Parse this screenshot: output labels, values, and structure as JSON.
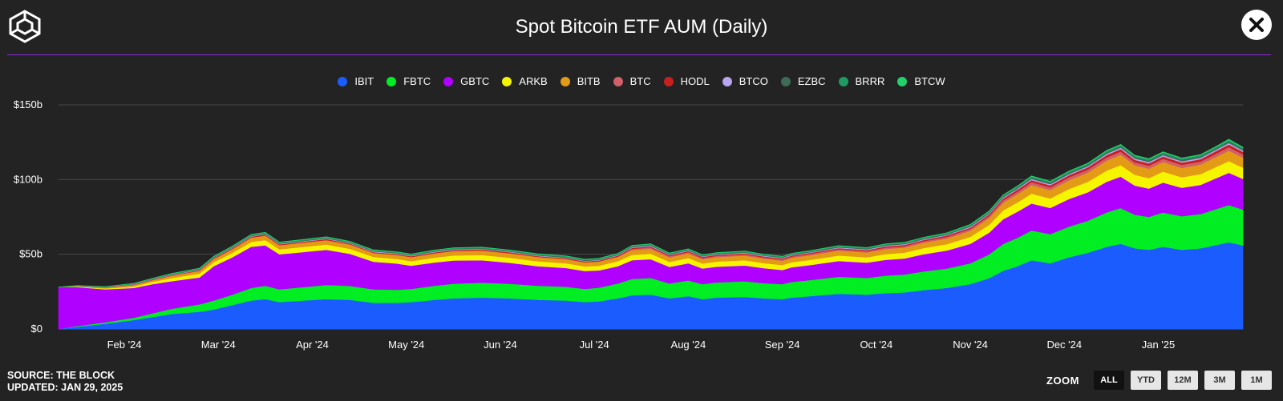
{
  "header": {
    "title": "Spot Bitcoin ETF AUM (Daily)"
  },
  "footer": {
    "source": "SOURCE: THE BLOCK",
    "updated": "UPDATED: JAN 29, 2025"
  },
  "zoom": {
    "label": "ZOOM",
    "options": [
      "ALL",
      "YTD",
      "12M",
      "3M",
      "1M"
    ],
    "selected": "ALL"
  },
  "chart_data": {
    "type": "area",
    "stacked": true,
    "title": "Spot Bitcoin ETF AUM (Daily)",
    "xlabel": "",
    "ylabel": "",
    "x_unit": "months since Jan 11, 2024",
    "x_range": [
      0,
      12.6
    ],
    "ylim": [
      0,
      150
    ],
    "y_ticks": [
      0,
      50,
      100,
      150
    ],
    "y_tick_labels": [
      "$0",
      "$50b",
      "$100b",
      "$150b"
    ],
    "x_ticks": [
      {
        "x": 0.7,
        "label": "Feb '24"
      },
      {
        "x": 1.7,
        "label": "Mar '24"
      },
      {
        "x": 2.7,
        "label": "Apr '24"
      },
      {
        "x": 3.7,
        "label": "May '24"
      },
      {
        "x": 4.7,
        "label": "Jun '24"
      },
      {
        "x": 5.7,
        "label": "Jul '24"
      },
      {
        "x": 6.7,
        "label": "Aug '24"
      },
      {
        "x": 7.7,
        "label": "Sep '24"
      },
      {
        "x": 8.7,
        "label": "Oct '24"
      },
      {
        "x": 9.7,
        "label": "Nov '24"
      },
      {
        "x": 10.7,
        "label": "Dec '24"
      },
      {
        "x": 11.7,
        "label": "Jan '25"
      }
    ],
    "grid": true,
    "legend_position": "top-center",
    "x": [
      0,
      0.2,
      0.5,
      0.8,
      1.0,
      1.2,
      1.5,
      1.65,
      1.85,
      2.05,
      2.2,
      2.35,
      2.6,
      2.85,
      3.1,
      3.35,
      3.6,
      3.75,
      4.0,
      4.2,
      4.5,
      4.8,
      5.1,
      5.4,
      5.6,
      5.75,
      5.95,
      6.1,
      6.3,
      6.5,
      6.7,
      6.85,
      7.0,
      7.3,
      7.5,
      7.7,
      7.8,
      8.0,
      8.3,
      8.6,
      8.8,
      9.0,
      9.2,
      9.45,
      9.7,
      9.9,
      10.05,
      10.2,
      10.35,
      10.55,
      10.75,
      10.95,
      11.15,
      11.3,
      11.45,
      11.6,
      11.75,
      11.95,
      12.15,
      12.3,
      12.45,
      12.6
    ],
    "series": [
      {
        "name": "IBIT",
        "color": "#1a5cff",
        "values": [
          0,
          1.5,
          3.5,
          6,
          8,
          10,
          11.5,
          13,
          16,
          19,
          20,
          18,
          19,
          20,
          19.5,
          17.5,
          17.5,
          18,
          19.5,
          20.5,
          21,
          20.5,
          19.5,
          19,
          18,
          18.5,
          20.5,
          22.5,
          23,
          20.5,
          22,
          20,
          21,
          21.5,
          20.5,
          20,
          21,
          22,
          23.5,
          23,
          24,
          24.5,
          26,
          27.5,
          30,
          34,
          39,
          42,
          46,
          44,
          48,
          51,
          55,
          57,
          54,
          53,
          55,
          53,
          54,
          56,
          58,
          56
        ]
      },
      {
        "name": "FBTC",
        "color": "#00ee22",
        "values": [
          0,
          0.5,
          1,
          1.5,
          2.5,
          3.5,
          5,
          6,
          7,
          8.5,
          9,
          8.5,
          9,
          9.5,
          9.3,
          9,
          8.8,
          8.8,
          9.5,
          9.8,
          10,
          9.8,
          9.5,
          9.3,
          8.8,
          9.2,
          10,
          11,
          11.2,
          10,
          10.5,
          10,
          10.2,
          10.5,
          10.2,
          10,
          10.5,
          10.8,
          11.5,
          11.2,
          11.8,
          12,
          12.5,
          13,
          14,
          16,
          18,
          19,
          20,
          19.5,
          20.5,
          21.5,
          23,
          24,
          22.5,
          22,
          23,
          22.5,
          23,
          24,
          25,
          24
        ]
      },
      {
        "name": "GBTC",
        "color": "#b000ff",
        "values": [
          28,
          26,
          22,
          20,
          19.5,
          18.5,
          18,
          23,
          25,
          27.5,
          27,
          23.5,
          23.5,
          23.5,
          21.5,
          18.5,
          17.5,
          15.5,
          15.5,
          15.5,
          15,
          14,
          13,
          12.5,
          12,
          11.5,
          11.5,
          12.5,
          12.5,
          11,
          11.5,
          10.5,
          10.5,
          10.5,
          10,
          9.5,
          9.8,
          10,
          10.5,
          10.2,
          10.5,
          10.7,
          11.5,
          12,
          13,
          14.5,
          16.5,
          17.5,
          18,
          17.5,
          18.5,
          19,
          20.5,
          21,
          19.5,
          19,
          20,
          19,
          19.5,
          20.5,
          21.5,
          20.5
        ]
      },
      {
        "name": "ARKB",
        "color": "#f5f500",
        "values": [
          0,
          0.3,
          0.6,
          1,
          1.5,
          2,
          2.5,
          2.7,
          3,
          3.3,
          3.5,
          3.3,
          3.4,
          3.5,
          3.4,
          3.2,
          3.1,
          3.1,
          3.3,
          3.4,
          3.5,
          3.4,
          3.3,
          3.2,
          3.1,
          3.2,
          3.4,
          3.6,
          3.7,
          3.4,
          3.5,
          3.3,
          3.4,
          3.5,
          3.4,
          3.3,
          3.4,
          3.5,
          3.7,
          3.6,
          3.8,
          3.9,
          4.1,
          4.3,
          4.7,
          5.2,
          5.9,
          6.2,
          6.6,
          6.4,
          6.7,
          7,
          7.5,
          7.7,
          7.2,
          7,
          7.3,
          7,
          7.2,
          7.5,
          7.9,
          7.5
        ]
      },
      {
        "name": "BITB",
        "color": "#e39b16",
        "values": [
          0,
          0.3,
          0.6,
          1,
          1.3,
          1.6,
          2,
          2.2,
          2.5,
          2.9,
          3,
          2.8,
          2.9,
          3,
          2.9,
          2.7,
          2.7,
          2.7,
          2.9,
          3,
          3.1,
          3,
          2.9,
          2.8,
          2.7,
          2.8,
          3,
          3.2,
          3.3,
          3,
          3.1,
          2.9,
          3,
          3.1,
          3,
          2.9,
          3,
          3.1,
          3.3,
          3.2,
          3.4,
          3.4,
          3.6,
          3.8,
          4.1,
          4.6,
          5.2,
          5.5,
          5.8,
          5.6,
          5.9,
          6.2,
          6.7,
          6.9,
          6.4,
          6.3,
          6.5,
          6.3,
          6.4,
          6.7,
          7,
          6.7
        ]
      },
      {
        "name": "BTC",
        "color": "#d0606a",
        "values": [
          0,
          0,
          0,
          0,
          0,
          0,
          0,
          0,
          0,
          0,
          0,
          0,
          0,
          0,
          0,
          0,
          0,
          0,
          0,
          0,
          0,
          0,
          0,
          0,
          0,
          0,
          0,
          0.8,
          0.9,
          0.8,
          0.9,
          0.8,
          0.8,
          0.9,
          0.8,
          0.8,
          0.8,
          0.9,
          0.9,
          0.9,
          1,
          1,
          1,
          1.1,
          1.2,
          1.4,
          1.6,
          1.7,
          1.9,
          1.8,
          1.9,
          2,
          2.1,
          2.2,
          2,
          2,
          2.1,
          2,
          2,
          2.2,
          2.3,
          2.2
        ]
      },
      {
        "name": "HODL",
        "color": "#c8201f",
        "values": [
          0,
          0.1,
          0.2,
          0.3,
          0.3,
          0.4,
          0.5,
          0.5,
          0.6,
          0.6,
          0.7,
          0.6,
          0.6,
          0.7,
          0.6,
          0.6,
          0.6,
          0.6,
          0.6,
          0.7,
          0.7,
          0.7,
          0.6,
          0.6,
          0.6,
          0.6,
          0.7,
          0.7,
          0.7,
          0.7,
          0.7,
          0.7,
          0.7,
          0.7,
          0.7,
          0.7,
          0.7,
          0.7,
          0.7,
          0.7,
          0.8,
          0.8,
          0.8,
          0.9,
          0.9,
          1.1,
          1.2,
          1.3,
          1.4,
          1.3,
          1.4,
          1.5,
          1.6,
          1.7,
          1.6,
          1.6,
          1.6,
          1.6,
          1.6,
          1.7,
          1.8,
          1.7
        ]
      },
      {
        "name": "BTCO",
        "color": "#b7a6ee",
        "values": [
          0,
          0.1,
          0.1,
          0.2,
          0.2,
          0.3,
          0.3,
          0.3,
          0.4,
          0.4,
          0.4,
          0.4,
          0.4,
          0.4,
          0.4,
          0.4,
          0.4,
          0.4,
          0.4,
          0.4,
          0.4,
          0.4,
          0.4,
          0.4,
          0.4,
          0.4,
          0.4,
          0.5,
          0.5,
          0.4,
          0.4,
          0.4,
          0.4,
          0.4,
          0.4,
          0.4,
          0.4,
          0.4,
          0.5,
          0.5,
          0.5,
          0.5,
          0.5,
          0.5,
          0.6,
          0.6,
          0.7,
          0.7,
          0.8,
          0.8,
          0.8,
          0.8,
          0.9,
          0.9,
          0.9,
          0.9,
          0.9,
          0.9,
          0.9,
          0.9,
          1,
          0.9
        ]
      },
      {
        "name": "EZBC",
        "color": "#3f6a55",
        "values": [
          0,
          0.1,
          0.1,
          0.2,
          0.2,
          0.3,
          0.3,
          0.3,
          0.4,
          0.4,
          0.4,
          0.4,
          0.4,
          0.4,
          0.4,
          0.4,
          0.4,
          0.4,
          0.4,
          0.4,
          0.4,
          0.4,
          0.4,
          0.4,
          0.4,
          0.4,
          0.4,
          0.5,
          0.5,
          0.4,
          0.4,
          0.4,
          0.4,
          0.4,
          0.4,
          0.4,
          0.4,
          0.4,
          0.5,
          0.5,
          0.5,
          0.5,
          0.5,
          0.5,
          0.6,
          0.6,
          0.7,
          0.7,
          0.8,
          0.8,
          0.8,
          0.8,
          0.9,
          0.9,
          0.9,
          0.9,
          0.9,
          0.9,
          0.9,
          0.9,
          1,
          0.9
        ]
      },
      {
        "name": "BRRR",
        "color": "#1f9a62",
        "values": [
          0,
          0.1,
          0.2,
          0.3,
          0.3,
          0.3,
          0.4,
          0.4,
          0.5,
          0.5,
          0.5,
          0.5,
          0.5,
          0.5,
          0.5,
          0.5,
          0.5,
          0.5,
          0.5,
          0.5,
          0.5,
          0.5,
          0.5,
          0.5,
          0.5,
          0.5,
          0.5,
          0.5,
          0.5,
          0.5,
          0.5,
          0.5,
          0.5,
          0.5,
          0.5,
          0.5,
          0.5,
          0.5,
          0.5,
          0.5,
          0.5,
          0.5,
          0.6,
          0.6,
          0.6,
          0.7,
          0.7,
          0.8,
          0.8,
          0.8,
          0.8,
          0.8,
          0.9,
          0.9,
          0.9,
          0.9,
          0.9,
          0.9,
          0.9,
          0.9,
          1,
          0.9
        ]
      },
      {
        "name": "BTCW",
        "color": "#22d16a",
        "values": [
          0,
          0.1,
          0.1,
          0.1,
          0.1,
          0.2,
          0.2,
          0.2,
          0.2,
          0.2,
          0.2,
          0.2,
          0.2,
          0.2,
          0.2,
          0.2,
          0.2,
          0.2,
          0.2,
          0.2,
          0.2,
          0.2,
          0.2,
          0.2,
          0.2,
          0.2,
          0.2,
          0.2,
          0.2,
          0.2,
          0.2,
          0.2,
          0.2,
          0.2,
          0.2,
          0.2,
          0.2,
          0.2,
          0.2,
          0.2,
          0.2,
          0.2,
          0.2,
          0.2,
          0.3,
          0.3,
          0.3,
          0.3,
          0.4,
          0.4,
          0.4,
          0.4,
          0.4,
          0.4,
          0.4,
          0.4,
          0.4,
          0.4,
          0.4,
          0.4,
          0.5,
          0.4
        ]
      }
    ]
  }
}
